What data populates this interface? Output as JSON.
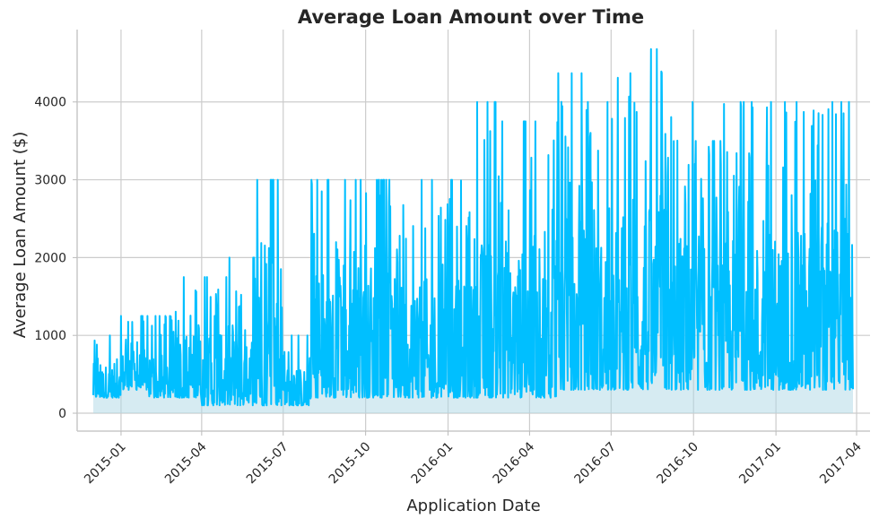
{
  "chart_data": {
    "type": "line",
    "title": "Average Loan Amount over Time",
    "xlabel": "Application Date",
    "ylabel": "Average Loan Amount ($)",
    "x_ticks": [
      "2015-01",
      "2015-04",
      "2015-07",
      "2015-10",
      "2016-01",
      "2016-04",
      "2016-07",
      "2016-10",
      "2017-01",
      "2017-04"
    ],
    "y_ticks": [
      0,
      1000,
      2000,
      3000,
      4000
    ],
    "ylim": [
      -230,
      4930
    ],
    "xlim": [
      "2014-11-13",
      "2017-04-16"
    ],
    "grid": true,
    "line_color": "#00BFFF",
    "fill_color": "#ADD8E6",
    "series": [
      {
        "x": [
          "2014-12-01",
          "2015-01-01",
          "2015-02-01",
          "2015-03-01",
          "2015-04-01",
          "2015-05-01",
          "2015-06-01",
          "2015-07-01",
          "2015-08-01",
          "2015-09-01",
          "2015-10-01",
          "2015-11-01",
          "2015-12-01",
          "2016-01-01",
          "2016-02-01",
          "2016-03-01",
          "2016-04-01",
          "2016-05-01",
          "2016-06-01",
          "2016-07-01",
          "2016-08-01",
          "2016-09-01",
          "2016-10-01",
          "2016-11-01",
          "2016-12-01",
          "2017-01-01",
          "2017-02-01",
          "2017-03-01"
        ],
        "low": [
          200,
          300,
          200,
          200,
          100,
          100,
          100,
          100,
          200,
          200,
          200,
          200,
          200,
          200,
          200,
          200,
          200,
          300,
          300,
          300,
          300,
          300,
          300,
          300,
          300,
          300,
          300,
          300
        ],
        "high": [
          1000,
          1250,
          1250,
          1750,
          1750,
          2000,
          3000,
          1000,
          3000,
          3000,
          3000,
          3000,
          3000,
          3000,
          4000,
          3750,
          3750,
          4370,
          4000,
          4370,
          4680,
          4000,
          3500,
          4000,
          4000,
          4000,
          4000,
          4000
        ]
      }
    ]
  }
}
